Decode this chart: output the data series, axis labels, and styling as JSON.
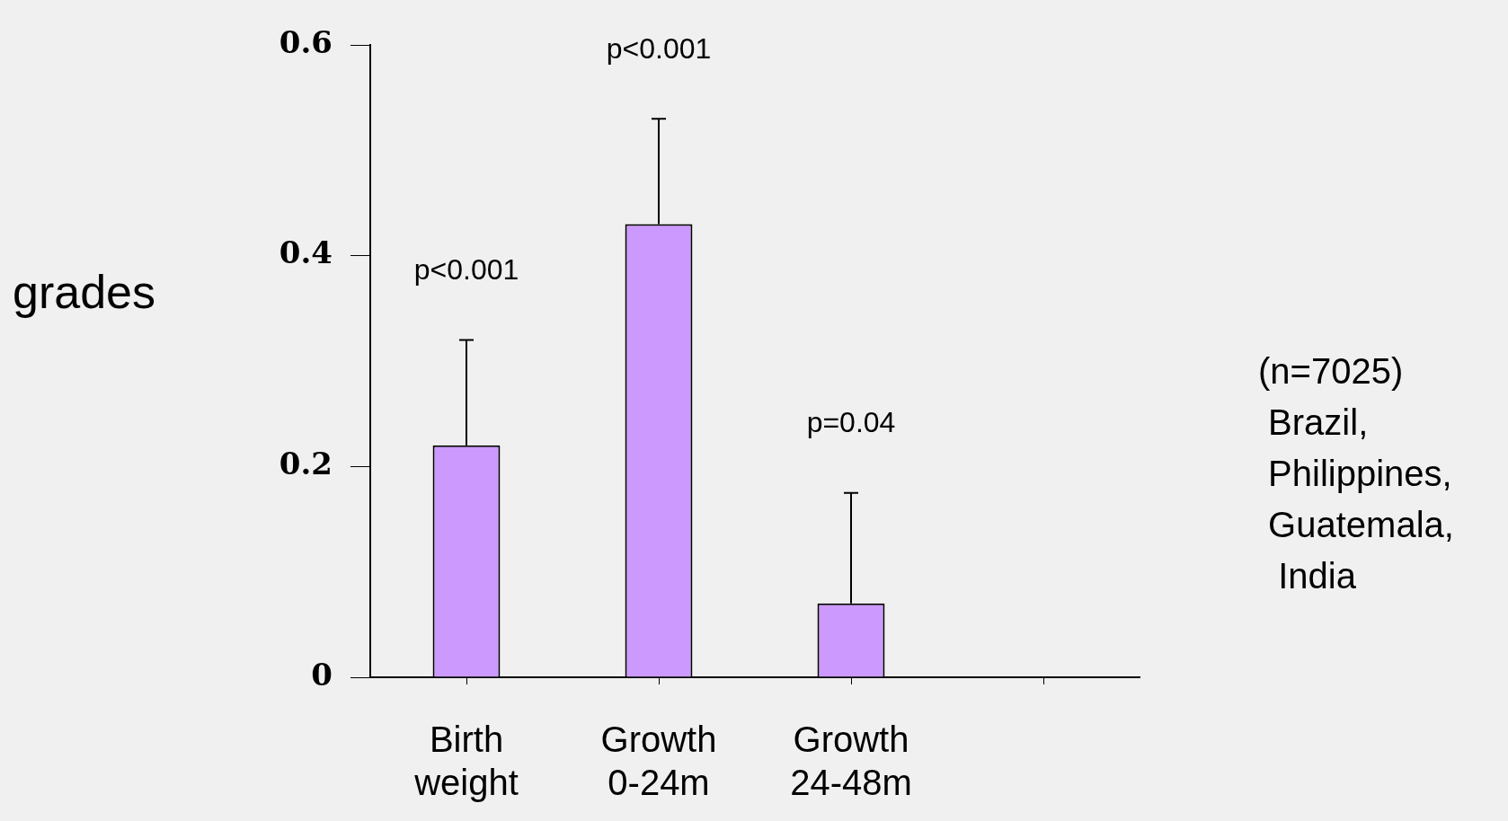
{
  "chart_data": {
    "type": "bar",
    "ylabel": "grades",
    "categories": [
      "Birth weight",
      "Growth 0-24m",
      "Growth 24-48m",
      null
    ],
    "values": [
      0.22,
      0.43,
      0.07,
      null
    ],
    "errors": [
      [
        0.22,
        0.32
      ],
      [
        0.43,
        0.53
      ],
      [
        0.07,
        0.175
      ],
      null
    ],
    "color": "#cc99ff",
    "ylim": [
      0,
      0.6
    ],
    "yticks": [
      0,
      0.2,
      0.4,
      0.6
    ],
    "annotations": [
      "p<0.001",
      "p<0.001",
      "p=0.04",
      "(n=7025)\n Brazil,\n Philippines,\n Guatemala,\n  India"
    ]
  }
}
